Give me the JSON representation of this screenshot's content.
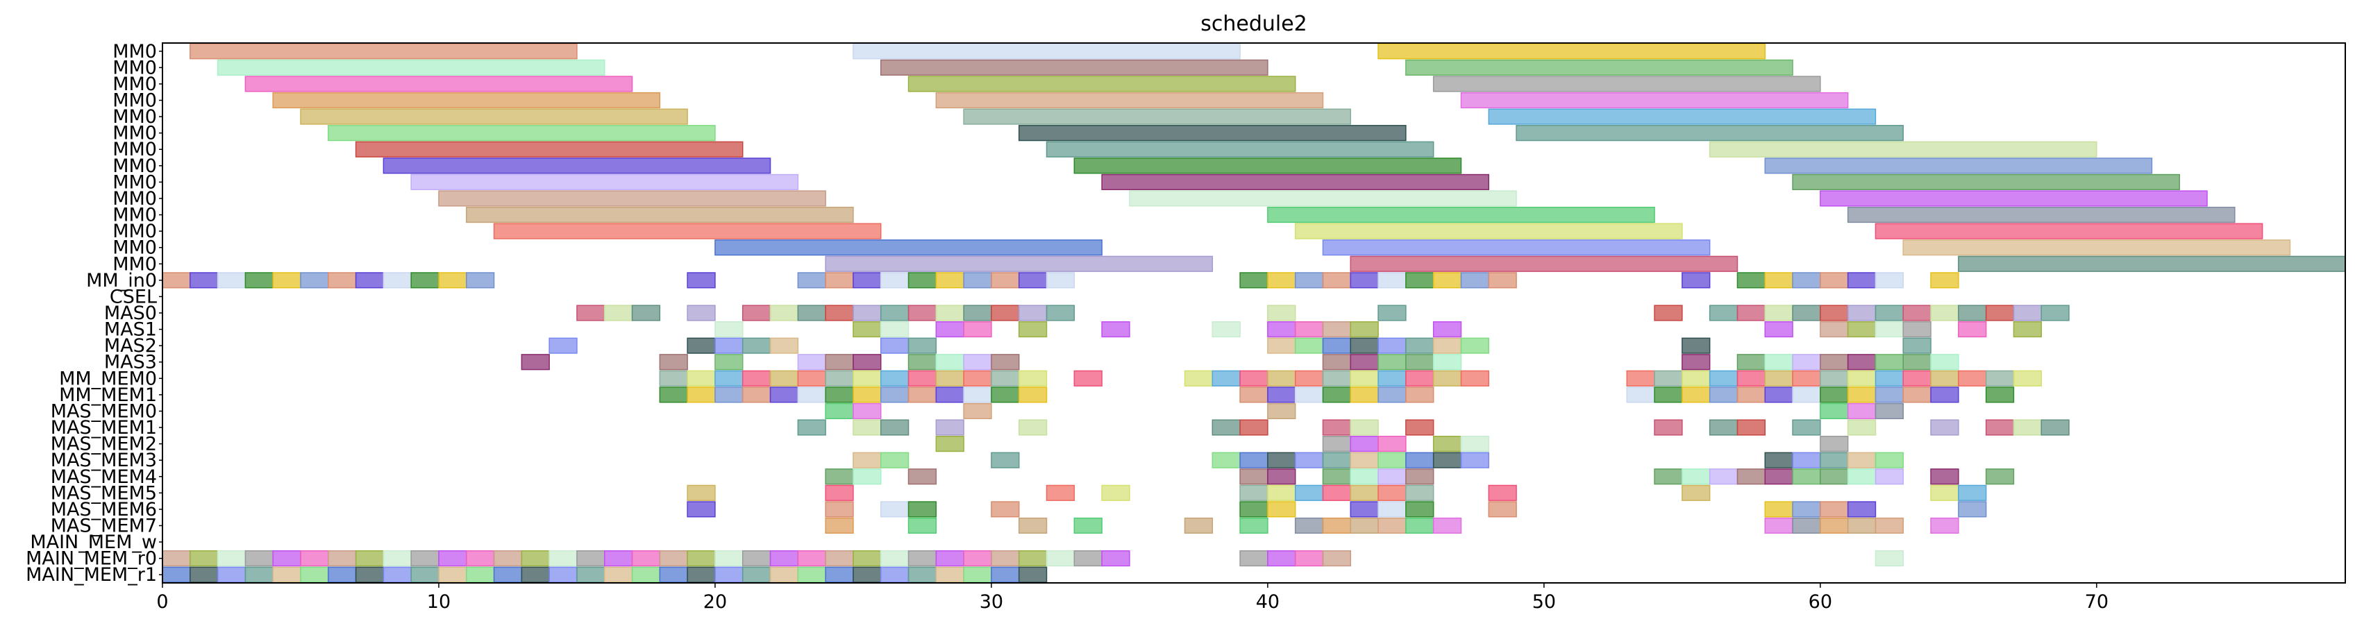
{
  "chart_data": {
    "type": "gantt",
    "title": "schedule2",
    "xlabel": "",
    "ylabel": "",
    "xlim": [
      0,
      79
    ],
    "x_ticks": [
      0,
      10,
      20,
      30,
      40,
      50,
      60,
      70
    ],
    "rows": [
      "MM0",
      "MM0",
      "MM0",
      "MM0",
      "MM0",
      "MM0",
      "MM0",
      "MM0",
      "MM0",
      "MM0",
      "MM0",
      "MM0",
      "MM0",
      "MM0",
      "MM_in0",
      "CSEL",
      "MAS0",
      "MAS1",
      "MAS2",
      "MAS3",
      "MM_MEM0",
      "MM_MEM1",
      "MAS_MEM0",
      "MAS_MEM1",
      "MAS_MEM2",
      "MAS_MEM3",
      "MAS_MEM4",
      "MAS_MEM5",
      "MAS_MEM6",
      "MAS_MEM7",
      "MAIN_MEM_w",
      "MAIN_MEM_r0",
      "MAIN_MEM_r1"
    ],
    "palette": [
      "#d98c6e",
      "#a8f0c8",
      "#ee5fbf",
      "#dc9a56",
      "#cdb35b",
      "#7fdc82",
      "#c9453f",
      "#5a3fd4",
      "#c2aef8",
      "#c99b86",
      "#c6a477",
      "#ee6b5f",
      "#4a73d0",
      "#a69ad0",
      "#c9d8f0",
      "#a07070",
      "#9ab040",
      "#d4a07a",
      "#89ae9c",
      "#2f4f4f",
      "#5f9a8f",
      "#2f8a2a",
      "#8a2a6e",
      "#c8ecd0",
      "#52cc72",
      "#d4e070",
      "#7888f0",
      "#c85070",
      "#e6c018",
      "#6ab86a",
      "#9a9a9a",
      "#e06ee0",
      "#56a8d8",
      "#5f9a8f",
      "#c8e0a0",
      "#7090d0",
      "#5fa05f",
      "#c050f0",
      "#808ca0",
      "#f05078",
      "#d8b888",
      "#5f8f80"
    ],
    "bars": [
      {
        "row": 0,
        "start": 1,
        "end": 15,
        "color": "#d98c6e"
      },
      {
        "row": 0,
        "start": 25,
        "end": 39,
        "color": "#c9d8f0"
      },
      {
        "row": 0,
        "start": 44,
        "end": 58,
        "color": "#e6c018"
      },
      {
        "row": 1,
        "start": 2,
        "end": 16,
        "color": "#a8f0c8"
      },
      {
        "row": 1,
        "start": 26,
        "end": 40,
        "color": "#a07070"
      },
      {
        "row": 1,
        "start": 45,
        "end": 59,
        "color": "#6ab86a"
      },
      {
        "row": 2,
        "start": 3,
        "end": 17,
        "color": "#ee5fbf"
      },
      {
        "row": 2,
        "start": 27,
        "end": 41,
        "color": "#9ab040"
      },
      {
        "row": 2,
        "start": 46,
        "end": 60,
        "color": "#9a9a9a"
      },
      {
        "row": 3,
        "start": 4,
        "end": 18,
        "color": "#dc9a56"
      },
      {
        "row": 3,
        "start": 28,
        "end": 42,
        "color": "#d4a07a"
      },
      {
        "row": 3,
        "start": 47,
        "end": 61,
        "color": "#e06ee0"
      },
      {
        "row": 4,
        "start": 5,
        "end": 19,
        "color": "#cdb35b"
      },
      {
        "row": 4,
        "start": 29,
        "end": 43,
        "color": "#89ae9c"
      },
      {
        "row": 4,
        "start": 48,
        "end": 62,
        "color": "#56a8d8"
      },
      {
        "row": 5,
        "start": 6,
        "end": 20,
        "color": "#7fdc82"
      },
      {
        "row": 5,
        "start": 31,
        "end": 45,
        "color": "#2f4f4f"
      },
      {
        "row": 5,
        "start": 49,
        "end": 63,
        "color": "#5f9a8f"
      },
      {
        "row": 6,
        "start": 7,
        "end": 21,
        "color": "#c9453f"
      },
      {
        "row": 6,
        "start": 32,
        "end": 46,
        "color": "#5f9a8f"
      },
      {
        "row": 6,
        "start": 56,
        "end": 70,
        "color": "#c8e0a0"
      },
      {
        "row": 7,
        "start": 8,
        "end": 22,
        "color": "#5a3fd4"
      },
      {
        "row": 7,
        "start": 33,
        "end": 47,
        "color": "#2f8a2a"
      },
      {
        "row": 7,
        "start": 58,
        "end": 72,
        "color": "#7090d0"
      },
      {
        "row": 8,
        "start": 9,
        "end": 23,
        "color": "#c2aef8"
      },
      {
        "row": 8,
        "start": 34,
        "end": 48,
        "color": "#8a2a6e"
      },
      {
        "row": 8,
        "start": 59,
        "end": 73,
        "color": "#5fa05f"
      },
      {
        "row": 9,
        "start": 10,
        "end": 24,
        "color": "#c99b86"
      },
      {
        "row": 9,
        "start": 35,
        "end": 49,
        "color": "#c8ecd0"
      },
      {
        "row": 9,
        "start": 60,
        "end": 74,
        "color": "#c050f0"
      },
      {
        "row": 10,
        "start": 11,
        "end": 25,
        "color": "#c6a477"
      },
      {
        "row": 10,
        "start": 40,
        "end": 54,
        "color": "#52cc72"
      },
      {
        "row": 10,
        "start": 61,
        "end": 75,
        "color": "#808ca0"
      },
      {
        "row": 11,
        "start": 12,
        "end": 26,
        "color": "#ee6b5f"
      },
      {
        "row": 11,
        "start": 41,
        "end": 55,
        "color": "#d4e070"
      },
      {
        "row": 11,
        "start": 62,
        "end": 76,
        "color": "#f05078"
      },
      {
        "row": 12,
        "start": 20,
        "end": 34,
        "color": "#4a73d0"
      },
      {
        "row": 12,
        "start": 42,
        "end": 56,
        "color": "#7888f0"
      },
      {
        "row": 12,
        "start": 63,
        "end": 77,
        "color": "#d8b888"
      },
      {
        "row": 13,
        "start": 24,
        "end": 38,
        "color": "#a69ad0"
      },
      {
        "row": 13,
        "start": 43,
        "end": 57,
        "color": "#c85070"
      },
      {
        "row": 13,
        "start": 65,
        "end": 79,
        "color": "#5f8f80"
      }
    ],
    "slot_cells": [
      {
        "row": 14,
        "slots": [
          0,
          1,
          2,
          3,
          4,
          5,
          6,
          7,
          8,
          9,
          10,
          11,
          19,
          23,
          24,
          25,
          26,
          27,
          28,
          29,
          30,
          31,
          32,
          39,
          40,
          41,
          42,
          43,
          44,
          45,
          46,
          47,
          48,
          55,
          57,
          58,
          59,
          60,
          61,
          62,
          64
        ]
      },
      {
        "row": 15,
        "slots": []
      },
      {
        "row": 16,
        "slots": [
          15,
          16,
          17,
          19,
          21,
          22,
          23,
          24,
          25,
          26,
          27,
          28,
          29,
          30,
          31,
          32,
          40,
          44,
          54,
          56,
          57,
          58,
          59,
          60,
          61,
          62,
          63,
          64,
          65,
          66,
          67,
          68
        ]
      },
      {
        "row": 17,
        "slots": [
          20,
          25,
          26,
          28,
          29,
          31,
          34,
          38,
          40,
          41,
          42,
          43,
          46,
          58,
          60,
          61,
          62,
          63,
          65,
          67
        ]
      },
      {
        "row": 18,
        "slots": [
          14,
          19,
          20,
          21,
          22,
          26,
          27,
          40,
          41,
          42,
          43,
          44,
          45,
          46,
          47,
          55,
          63
        ]
      },
      {
        "row": 19,
        "slots": [
          13,
          18,
          20,
          23,
          24,
          25,
          27,
          28,
          29,
          30,
          42,
          43,
          44,
          45,
          46,
          55,
          57,
          58,
          59,
          60,
          61,
          62,
          63,
          64
        ]
      },
      {
        "row": 20,
        "slots": [
          18,
          19,
          20,
          21,
          22,
          23,
          24,
          25,
          26,
          27,
          28,
          29,
          30,
          31,
          33,
          37,
          38,
          39,
          40,
          41,
          42,
          43,
          44,
          45,
          46,
          47,
          53,
          54,
          55,
          56,
          57,
          58,
          59,
          60,
          61,
          62,
          63,
          64,
          65,
          66,
          67
        ]
      },
      {
        "row": 21,
        "slots": [
          18,
          19,
          20,
          21,
          22,
          23,
          24,
          25,
          26,
          27,
          28,
          29,
          30,
          31,
          39,
          40,
          41,
          42,
          43,
          44,
          45,
          53,
          54,
          55,
          56,
          57,
          58,
          59,
          60,
          61,
          62,
          63,
          64,
          66
        ]
      },
      {
        "row": 22,
        "slots": [
          24,
          25,
          29,
          40,
          60,
          61,
          62
        ]
      },
      {
        "row": 23,
        "slots": [
          23,
          25,
          26,
          28,
          31,
          38,
          39,
          42,
          43,
          45,
          54,
          56,
          57,
          59,
          61,
          64,
          66,
          67,
          68
        ]
      },
      {
        "row": 24,
        "slots": [
          28,
          42,
          43,
          44,
          46,
          47,
          60
        ]
      },
      {
        "row": 25,
        "slots": [
          25,
          26,
          30,
          38,
          39,
          40,
          41,
          42,
          43,
          44,
          45,
          46,
          47,
          58,
          59,
          60,
          61,
          62
        ]
      },
      {
        "row": 26,
        "slots": [
          24,
          25,
          27,
          39,
          40,
          42,
          43,
          44,
          45,
          54,
          55,
          56,
          57,
          58,
          59,
          60,
          61,
          62,
          64,
          66
        ]
      },
      {
        "row": 27,
        "slots": [
          19,
          24,
          32,
          34,
          39,
          40,
          41,
          42,
          43,
          44,
          45,
          48,
          55,
          64,
          65
        ]
      },
      {
        "row": 28,
        "slots": [
          19,
          24,
          26,
          27,
          30,
          39,
          40,
          43,
          44,
          45,
          48,
          58,
          59,
          60,
          61,
          65
        ]
      },
      {
        "row": 29,
        "slots": [
          24,
          27,
          31,
          33,
          37,
          39,
          41,
          42,
          43,
          44,
          45,
          46,
          58,
          59,
          60,
          61,
          62,
          64
        ]
      },
      {
        "row": 30,
        "slots": []
      },
      {
        "row": 31,
        "slots": [
          0,
          1,
          2,
          3,
          4,
          5,
          6,
          7,
          8,
          9,
          10,
          11,
          12,
          13,
          14,
          15,
          16,
          17,
          18,
          19,
          20,
          21,
          22,
          23,
          24,
          25,
          26,
          27,
          28,
          29,
          30,
          31,
          32,
          33,
          34,
          39,
          40,
          41,
          42,
          62
        ]
      },
      {
        "row": 32,
        "slots": [
          0,
          1,
          2,
          3,
          4,
          5,
          6,
          7,
          8,
          9,
          10,
          11,
          12,
          13,
          14,
          15,
          16,
          17,
          18,
          19,
          20,
          21,
          22,
          23,
          24,
          25,
          26,
          27,
          28,
          29,
          30,
          31
        ]
      }
    ]
  }
}
